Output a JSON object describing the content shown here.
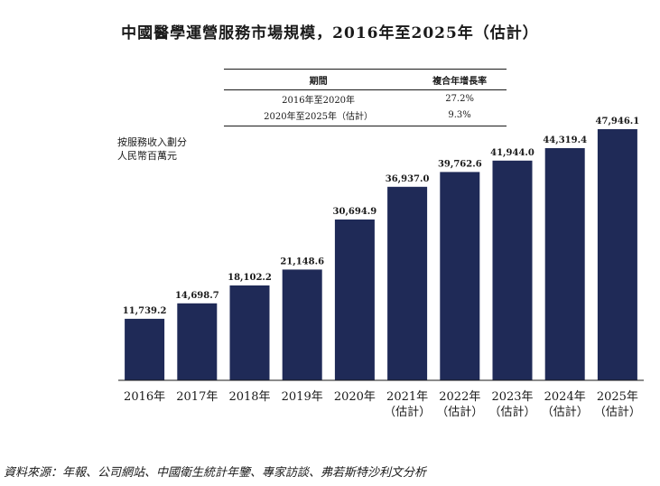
{
  "title": "中國醫學運營服務市場規模，2016年至2025年（估計）",
  "cagr_table": {
    "headers": [
      "期間",
      "複合年增長率"
    ],
    "rows": [
      {
        "period": "2016年至2020年",
        "rate": "27.2%"
      },
      {
        "period": "2020年至2025年（估計）",
        "rate": "9.3%"
      }
    ]
  },
  "unit_label": [
    "按服務收入劃分",
    "人民幣百萬元"
  ],
  "source": "資料來源：年報、公司網站、中國衛生統計年鑒、專家訪談、弗若斯特沙利文分析",
  "colors": {
    "bar": "#1f2a57",
    "axis": "#1a1a1a"
  },
  "chart_data": {
    "type": "bar",
    "categories": [
      [
        "2016年"
      ],
      [
        "2017年"
      ],
      [
        "2018年"
      ],
      [
        "2019年"
      ],
      [
        "2020年"
      ],
      [
        "2021年",
        "（估計）"
      ],
      [
        "2022年",
        "（估計）"
      ],
      [
        "2023年",
        "（估計）"
      ],
      [
        "2024年",
        "（估計）"
      ],
      [
        "2025年",
        "（估計）"
      ]
    ],
    "values": [
      11739.2,
      14698.7,
      18102.2,
      21148.6,
      30694.9,
      36937.0,
      39762.6,
      41944.0,
      44319.4,
      47946.1
    ],
    "data_labels": [
      "11,739.2",
      "14,698.7",
      "18,102.2",
      "21,148.6",
      "30,694.9",
      "36,937.0",
      "39,762.6",
      "41,944.0",
      "44,319.4",
      "47,946.1"
    ],
    "ylabel": "按服務收入劃分 人民幣百萬元",
    "grid": false,
    "legend": "none"
  }
}
